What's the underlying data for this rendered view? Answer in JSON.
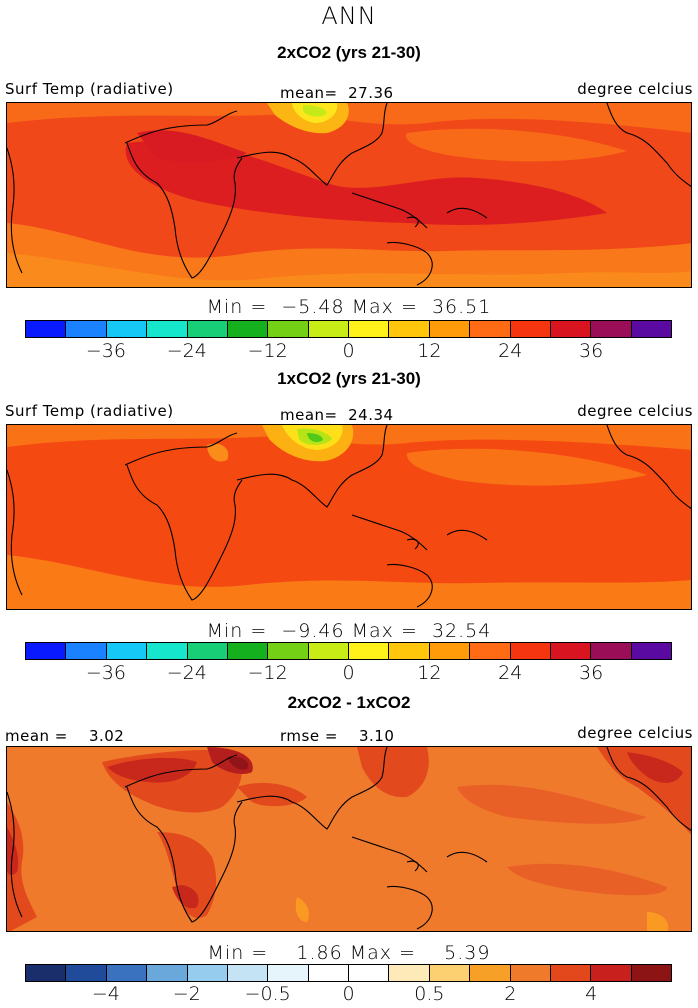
{
  "title": "ANN",
  "panels": [
    {
      "title": "2xCO2 (yrs 21-30)",
      "left_label": "Surf Temp (radiative)",
      "center_label": "mean=  27.36",
      "right_label": "degree celcius",
      "minmax": "Min =  −5.48 Max =  36.51"
    },
    {
      "title": "1xCO2 (yrs 21-30)",
      "left_label": "Surf Temp (radiative)",
      "center_label": "mean=  24.34",
      "right_label": "degree celcius",
      "minmax": "Min =  −9.46 Max =  32.54"
    },
    {
      "title": "2xCO2 - 1xCO2",
      "left_label": "mean =    3.02",
      "center_label": "rmse =    3.10",
      "right_label": "degree celcius",
      "minmax": "Min =    1.86 Max =    5.39"
    }
  ],
  "colorbar_abs": {
    "colors": [
      "#0a1aff",
      "#1a82ff",
      "#15c8f5",
      "#16e6cc",
      "#18cf78",
      "#14b01e",
      "#74d014",
      "#c8ec16",
      "#fff21a",
      "#ffc60c",
      "#ff9a08",
      "#ff6a14",
      "#f43510",
      "#d81420",
      "#9a0e58",
      "#5a0aa0"
    ],
    "ticks": [
      "−36",
      "−24",
      "−12",
      "0",
      "12",
      "24",
      "36"
    ]
  },
  "colorbar_diff": {
    "colors": [
      "#1a2e6c",
      "#204a9a",
      "#3b72bf",
      "#6aa8dc",
      "#96ccee",
      "#c4e4f6",
      "#e6f4fc",
      "#ffffff",
      "#ffffff",
      "#fdeab8",
      "#fcd070",
      "#f7a028",
      "#f07a2c",
      "#e2481c",
      "#c8201c",
      "#8c1414"
    ],
    "ticks": [
      "−4",
      "−2",
      "−0.5",
      "0",
      "0.5",
      "2",
      "4"
    ]
  }
}
